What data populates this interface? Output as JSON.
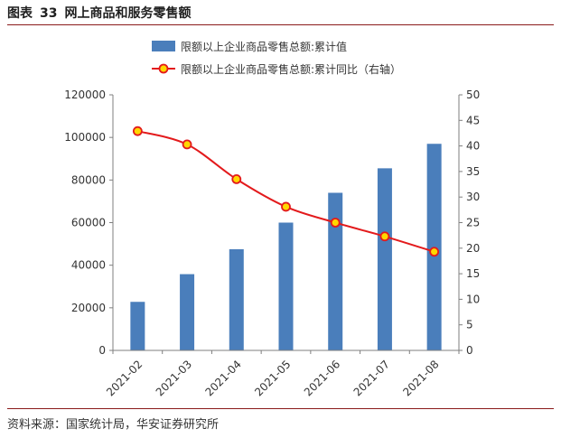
{
  "figure": {
    "label": "图表",
    "number": "33",
    "title": "网上商品和服务零售额"
  },
  "source": "资料来源：国家统计局，华安证券研究所",
  "colors": {
    "bar": "#4a7ebb",
    "line": "#e31a1c",
    "marker_fill": "#ffd700",
    "rule": "#8a1a1a",
    "axis": "#7f7f7f"
  },
  "chart_data": {
    "type": "bar+line",
    "categories": [
      "2021-02",
      "2021-03",
      "2021-04",
      "2021-05",
      "2021-06",
      "2021-07",
      "2021-08"
    ],
    "series": [
      {
        "name": "限额以上企业商品零售总额:累计值",
        "type": "bar",
        "axis": "left",
        "values": [
          22800,
          35800,
          47500,
          60000,
          74000,
          85500,
          97000
        ]
      },
      {
        "name": "限额以上企业商品零售总额:累计同比（右轴）",
        "type": "line",
        "axis": "right",
        "values": [
          42.9,
          40.3,
          33.5,
          28.1,
          25.0,
          22.3,
          19.3
        ]
      }
    ],
    "y_left": {
      "ylim": [
        0,
        120000
      ],
      "ticks": [
        "0",
        "20000",
        "40000",
        "60000",
        "80000",
        "100000",
        "120000"
      ]
    },
    "y_right": {
      "ylim": [
        0,
        50
      ],
      "ticks": [
        "0",
        "5",
        "10",
        "15",
        "20",
        "25",
        "30",
        "35",
        "40",
        "45",
        "50"
      ]
    },
    "legend": "top",
    "grid": false
  }
}
